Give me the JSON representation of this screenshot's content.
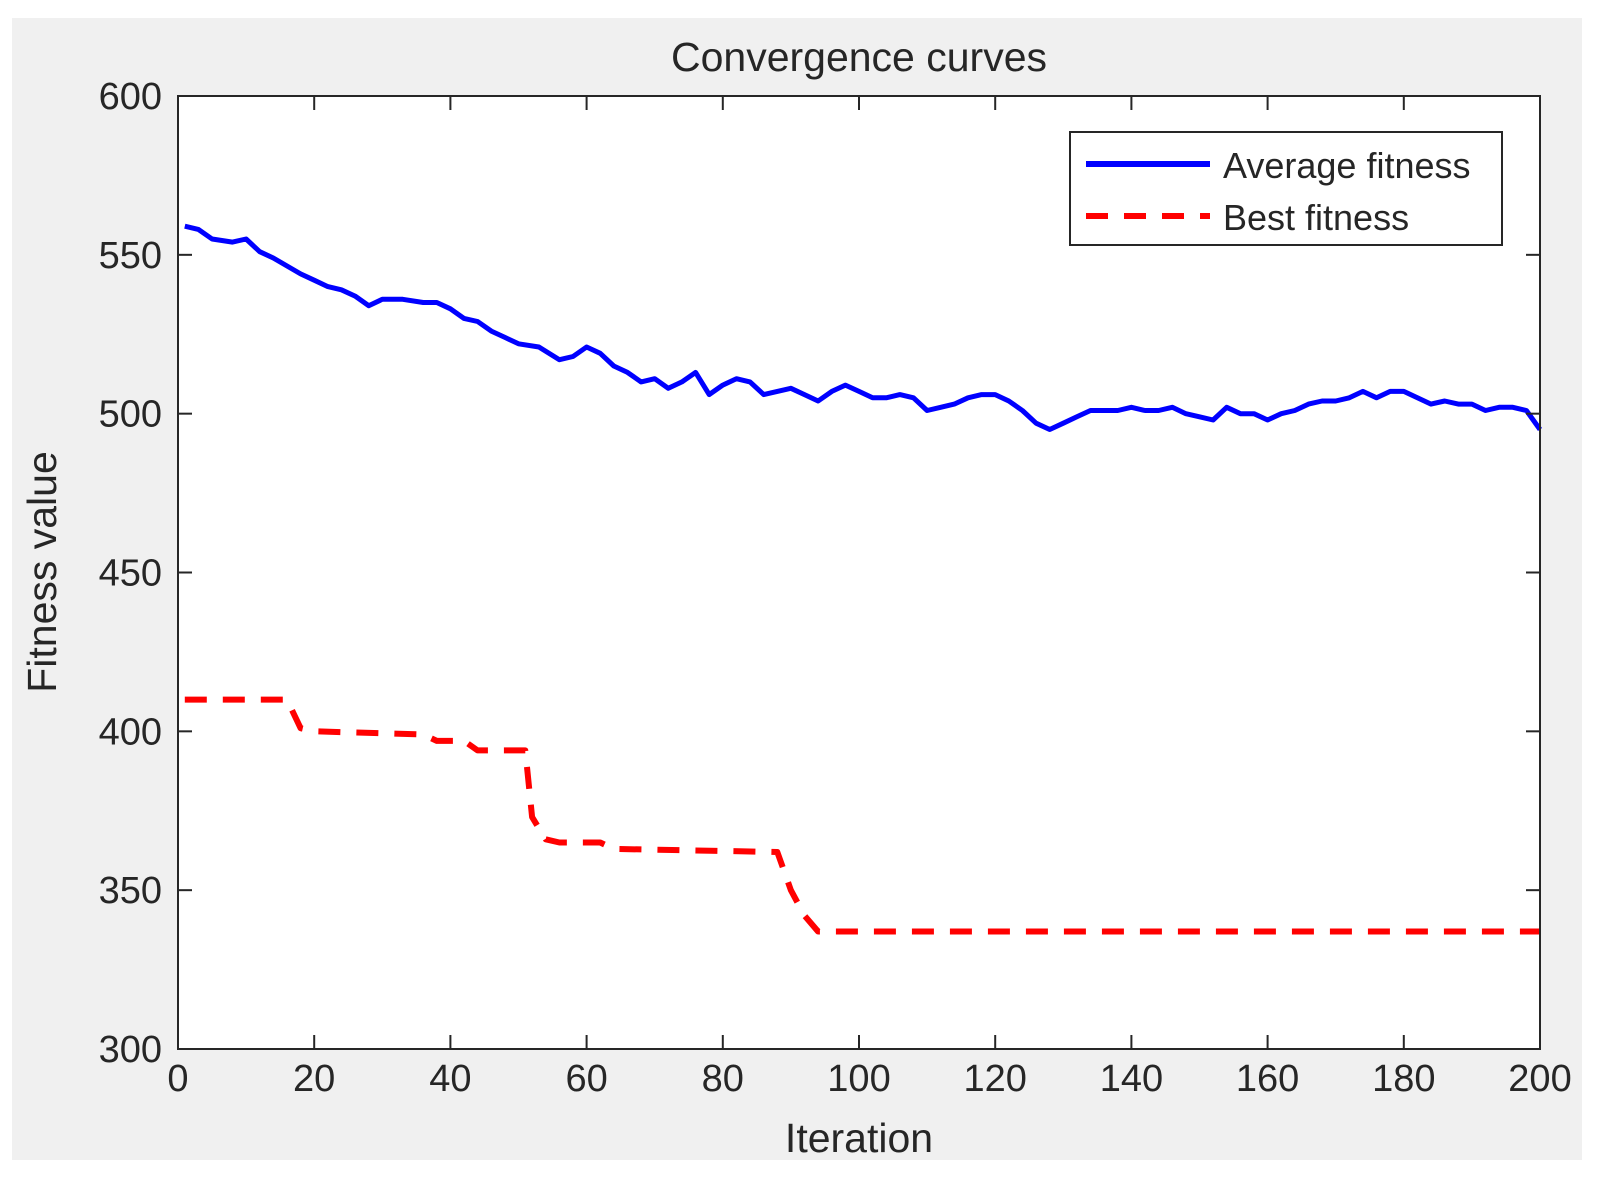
{
  "chart_data": {
    "type": "line",
    "title": "Convergence curves",
    "xlabel": "Iteration",
    "ylabel": "Fitness value",
    "xlim": [
      0,
      200
    ],
    "ylim": [
      300,
      600
    ],
    "xticks": [
      0,
      20,
      40,
      60,
      80,
      100,
      120,
      140,
      160,
      180,
      200
    ],
    "yticks": [
      300,
      350,
      400,
      450,
      500,
      550,
      600
    ],
    "grid": false,
    "legend_position": "top-right",
    "colors": {
      "figure_background": "#f0f0f0",
      "axes_background": "#ffffff",
      "axis": "#262626",
      "average": "#0000ff",
      "best": "#ff0000"
    },
    "series": [
      {
        "name": "Average fitness",
        "style": "solid",
        "color": "#0000ff",
        "x": [
          1,
          3,
          5,
          8,
          10,
          12,
          14,
          18,
          20,
          22,
          24,
          26,
          28,
          30,
          33,
          36,
          38,
          40,
          42,
          44,
          46,
          48,
          50,
          53,
          56,
          58,
          60,
          62,
          64,
          66,
          68,
          70,
          72,
          74,
          76,
          78,
          80,
          82,
          84,
          86,
          88,
          90,
          92,
          94,
          96,
          98,
          100,
          102,
          104,
          106,
          108,
          110,
          112,
          114,
          116,
          118,
          120,
          122,
          124,
          126,
          128,
          130,
          132,
          134,
          136,
          138,
          140,
          142,
          144,
          146,
          148,
          150,
          152,
          154,
          156,
          158,
          160,
          162,
          164,
          166,
          168,
          170,
          172,
          174,
          176,
          178,
          180,
          182,
          184,
          186,
          188,
          190,
          192,
          194,
          196,
          198,
          200
        ],
        "y": [
          559,
          558,
          555,
          554,
          555,
          551,
          549,
          544,
          542,
          540,
          539,
          537,
          534,
          536,
          536,
          535,
          535,
          533,
          530,
          529,
          526,
          524,
          522,
          521,
          517,
          518,
          521,
          519,
          515,
          513,
          510,
          511,
          508,
          510,
          513,
          506,
          509,
          511,
          510,
          506,
          507,
          508,
          506,
          504,
          507,
          509,
          507,
          505,
          505,
          506,
          505,
          501,
          502,
          503,
          505,
          506,
          506,
          504,
          501,
          497,
          495,
          497,
          499,
          501,
          501,
          501,
          502,
          501,
          501,
          502,
          500,
          499,
          498,
          502,
          500,
          500,
          498,
          500,
          501,
          503,
          504,
          504,
          505,
          507,
          505,
          507,
          507,
          505,
          503,
          504,
          503,
          503,
          501,
          502,
          502,
          501,
          495
        ]
      },
      {
        "name": "Best fitness",
        "style": "dashed",
        "color": "#ff0000",
        "x": [
          1,
          16,
          18,
          20,
          36,
          38,
          42,
          44,
          51,
          52,
          54,
          56,
          62,
          64,
          88,
          90,
          92,
          94,
          200
        ],
        "y": [
          410,
          410,
          401,
          400,
          399,
          397,
          397,
          394,
          394,
          373,
          366,
          365,
          365,
          363,
          362,
          350,
          342,
          337,
          337
        ]
      }
    ]
  }
}
